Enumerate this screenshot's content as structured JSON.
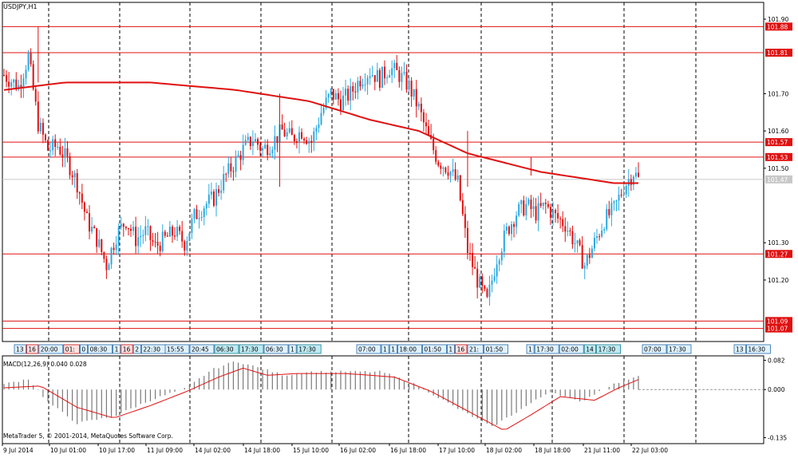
{
  "chart_title": "USDJPY,H1",
  "copyright": "MetaTrader 5, © 2001-2014, MetaQuotes Software Corp.",
  "price_scale": {
    "ticks": [
      "101.90",
      "101.70",
      "101.60",
      "101.50",
      "101.30",
      "101.20"
    ],
    "range": [
      101.05,
      101.93
    ]
  },
  "price_levels": [
    {
      "value": 101.88,
      "label": "101.88"
    },
    {
      "value": 101.81,
      "label": "101.81"
    },
    {
      "value": 101.57,
      "label": "101.57"
    },
    {
      "value": 101.53,
      "label": "101.53"
    },
    {
      "value": 101.27,
      "label": "101.27"
    },
    {
      "value": 101.09,
      "label": "101.09"
    },
    {
      "value": 101.07,
      "label": "101.07"
    }
  ],
  "current_price": {
    "value": 101.47,
    "label": "101.47"
  },
  "time_axis": [
    "9 Jul 2014",
    "10 Jul 01:00",
    "10 Jul 17:00",
    "11 Jul 09:00",
    "14 Jul 02:00",
    "14 Jul 18:00",
    "15 Jul 10:00",
    "16 Jul 02:00",
    "16 Jul 18:00",
    "17 Jul 10:00",
    "18 Jul 02:00",
    "18 Jul 18:00",
    "21 Jul 11:00",
    "22 Jul 03:00"
  ],
  "event_labels": [
    {
      "text": "13",
      "kind": "blue"
    },
    {
      "text": "16",
      "kind": "red"
    },
    {
      "text": "20:00",
      "kind": "blue"
    },
    {
      "text": "01:",
      "kind": "red"
    },
    {
      "text": "0",
      "kind": "blue"
    },
    {
      "text": "08:30",
      "kind": "blue"
    },
    {
      "text": "1",
      "kind": "blue"
    },
    {
      "text": "16",
      "kind": "red"
    },
    {
      "text": "2",
      "kind": "blue"
    },
    {
      "text": "22:30",
      "kind": "blue"
    },
    {
      "text": "15:55",
      "kind": "blue"
    },
    {
      "text": "20:45",
      "kind": "blue"
    },
    {
      "text": "06:30",
      "kind": "teal"
    },
    {
      "text": "17:30",
      "kind": "teal"
    },
    {
      "text": "06:30",
      "kind": "blue"
    },
    {
      "text": "1",
      "kind": "blue"
    },
    {
      "text": "17:30",
      "kind": "teal"
    },
    {
      "text": "07:00",
      "kind": "blue"
    },
    {
      "text": "1",
      "kind": "blue"
    },
    {
      "text": "1",
      "kind": "blue"
    },
    {
      "text": "18:00",
      "kind": "blue"
    },
    {
      "text": "01:50",
      "kind": "blue"
    },
    {
      "text": "1",
      "kind": "blue"
    },
    {
      "text": "16",
      "kind": "red"
    },
    {
      "text": "21:",
      "kind": "blue"
    },
    {
      "text": "01:50",
      "kind": "blue"
    },
    {
      "text": "1",
      "kind": "blue"
    },
    {
      "text": "17:30",
      "kind": "blue"
    },
    {
      "text": "02:00",
      "kind": "blue"
    },
    {
      "text": "14",
      "kind": "teal"
    },
    {
      "text": "17:30",
      "kind": "teal"
    },
    {
      "text": "07:00",
      "kind": "blue"
    },
    {
      "text": "17:30",
      "kind": "blue"
    },
    {
      "text": "13",
      "kind": "blue"
    },
    {
      "text": "16:30",
      "kind": "blue"
    }
  ],
  "macd": {
    "title": "MACD(12,26,9) 0.040 0.028",
    "ticks": [
      "0.082",
      "0.000",
      "-0.135"
    ],
    "range": [
      -0.145,
      0.09
    ]
  },
  "colors": {
    "bull": "#2aa8e0",
    "bear": "#e01010",
    "level": "#e01010",
    "ma": "#e01010",
    "hist": "#7a7a7a",
    "grid": "#000000"
  },
  "chart_data": {
    "type": "candlestick",
    "symbol": "USDJPY",
    "timeframe": "H1",
    "ylim": [
      101.05,
      101.93
    ],
    "close_path": [
      [
        0,
        101.75
      ],
      [
        6,
        101.72
      ],
      [
        10,
        101.8
      ],
      [
        14,
        101.62
      ],
      [
        18,
        101.55
      ],
      [
        22,
        101.56
      ],
      [
        26,
        101.52
      ],
      [
        30,
        101.46
      ],
      [
        34,
        101.36
      ],
      [
        38,
        101.31
      ],
      [
        42,
        101.24
      ],
      [
        46,
        101.32
      ],
      [
        50,
        101.36
      ],
      [
        54,
        101.31
      ],
      [
        58,
        101.33
      ],
      [
        62,
        101.29
      ],
      [
        66,
        101.31
      ],
      [
        70,
        101.33
      ],
      [
        74,
        101.3
      ],
      [
        78,
        101.37
      ],
      [
        82,
        101.4
      ],
      [
        86,
        101.42
      ],
      [
        90,
        101.47
      ],
      [
        94,
        101.51
      ],
      [
        98,
        101.55
      ],
      [
        102,
        101.58
      ],
      [
        106,
        101.55
      ],
      [
        110,
        101.57
      ],
      [
        114,
        101.6
      ],
      [
        118,
        101.58
      ],
      [
        122,
        101.6
      ],
      [
        126,
        101.57
      ],
      [
        130,
        101.65
      ],
      [
        134,
        101.7
      ],
      [
        138,
        101.68
      ],
      [
        142,
        101.7
      ],
      [
        146,
        101.74
      ],
      [
        150,
        101.76
      ],
      [
        154,
        101.74
      ],
      [
        158,
        101.77
      ],
      [
        162,
        101.75
      ],
      [
        166,
        101.72
      ],
      [
        170,
        101.66
      ],
      [
        174,
        101.58
      ],
      [
        178,
        101.52
      ],
      [
        182,
        101.5
      ],
      [
        186,
        101.46
      ],
      [
        190,
        101.28
      ],
      [
        194,
        101.2
      ],
      [
        198,
        101.14
      ],
      [
        202,
        101.26
      ],
      [
        206,
        101.33
      ],
      [
        210,
        101.38
      ],
      [
        214,
        101.4
      ],
      [
        218,
        101.38
      ],
      [
        222,
        101.4
      ],
      [
        226,
        101.37
      ],
      [
        230,
        101.35
      ],
      [
        234,
        101.3
      ],
      [
        238,
        101.24
      ],
      [
        242,
        101.3
      ],
      [
        246,
        101.36
      ],
      [
        250,
        101.39
      ],
      [
        254,
        101.45
      ],
      [
        258,
        101.49
      ],
      [
        260,
        101.47
      ]
    ],
    "ma_path": [
      [
        0,
        101.71
      ],
      [
        25,
        101.73
      ],
      [
        60,
        101.73
      ],
      [
        95,
        101.71
      ],
      [
        125,
        101.68
      ],
      [
        150,
        101.63
      ],
      [
        170,
        101.6
      ],
      [
        190,
        101.54
      ],
      [
        220,
        101.49
      ],
      [
        250,
        101.46
      ],
      [
        260,
        101.46
      ]
    ],
    "macd_path": [
      [
        0,
        0.015
      ],
      [
        10,
        0.03
      ],
      [
        18,
        -0.035
      ],
      [
        30,
        -0.095
      ],
      [
        45,
        -0.075
      ],
      [
        60,
        -0.03
      ],
      [
        75,
        0.005
      ],
      [
        85,
        0.055
      ],
      [
        95,
        0.08
      ],
      [
        105,
        0.06
      ],
      [
        115,
        0.04
      ],
      [
        125,
        0.05
      ],
      [
        140,
        0.05
      ],
      [
        155,
        0.05
      ],
      [
        170,
        0.01
      ],
      [
        185,
        -0.05
      ],
      [
        200,
        -0.105
      ],
      [
        212,
        -0.055
      ],
      [
        224,
        -0.005
      ],
      [
        236,
        -0.035
      ],
      [
        248,
        0.01
      ],
      [
        260,
        0.04
      ]
    ],
    "signal_path": [
      [
        0,
        0.005
      ],
      [
        15,
        0.01
      ],
      [
        30,
        -0.05
      ],
      [
        45,
        -0.08
      ],
      [
        60,
        -0.045
      ],
      [
        75,
        -0.005
      ],
      [
        88,
        0.035
      ],
      [
        98,
        0.06
      ],
      [
        108,
        0.04
      ],
      [
        120,
        0.045
      ],
      [
        140,
        0.045
      ],
      [
        160,
        0.035
      ],
      [
        175,
        -0.005
      ],
      [
        190,
        -0.06
      ],
      [
        205,
        -0.115
      ],
      [
        215,
        -0.075
      ],
      [
        228,
        -0.02
      ],
      [
        242,
        -0.03
      ],
      [
        252,
        0.005
      ],
      [
        260,
        0.028
      ]
    ]
  }
}
